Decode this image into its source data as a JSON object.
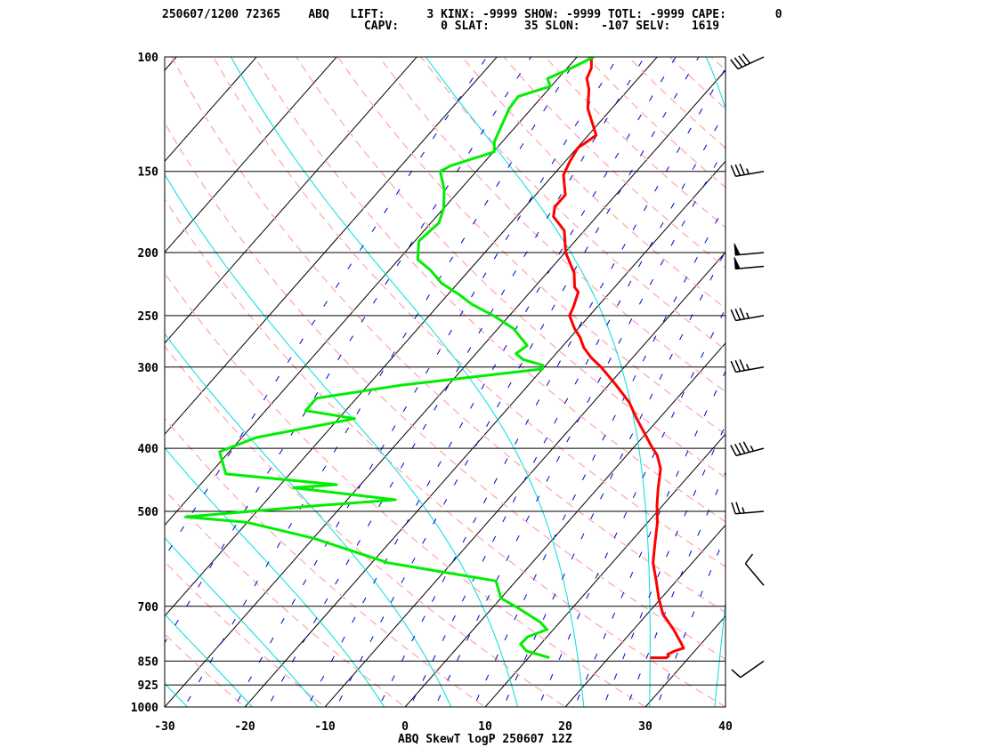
{
  "header": {
    "line1": "250607/1200 72365    ABQ   LIFT:      3 KINX: -9999 SHOW: -9999 TOTL: -9999 CAPE:       0",
    "line2": "                             CAPV:      0 SLAT:     35 SLON:   -107 SELV:   1619"
  },
  "colors": {
    "temperature": "#ff0000",
    "dewpoint": "#00ee00",
    "isotherm": "#000000",
    "dry_adiabat": "#ffaab4",
    "moist_adiabat": "#00dede",
    "mixing_ratio": "#0000cc"
  },
  "chart_data": {
    "type": "line",
    "title": "ABQ SkewT logP 250607 12Z",
    "xlabel": "",
    "ylabel": "",
    "x_axis": {
      "range": [
        -30,
        40
      ],
      "ticks": [
        -30,
        -20,
        -10,
        0,
        10,
        20,
        30,
        40
      ],
      "unit": "deg C (skewed)"
    },
    "y_axis": {
      "range": [
        1000,
        100
      ],
      "scale": "log",
      "ticks": [
        100,
        150,
        200,
        250,
        300,
        400,
        500,
        700,
        850,
        925,
        1000
      ],
      "unit": "hPa"
    },
    "grid": true,
    "series": [
      {
        "name": "",
        "kind": "temperature",
        "points": [
          [
            840,
            25.2
          ],
          [
            840,
            27.2
          ],
          [
            835,
            27.3
          ],
          [
            830,
            27.0
          ],
          [
            820,
            27.5
          ],
          [
            812,
            28.3
          ],
          [
            800,
            27.6
          ],
          [
            760,
            25.0
          ],
          [
            720,
            22.0
          ],
          [
            680,
            19.7
          ],
          [
            640,
            17.5
          ],
          [
            600,
            15.1
          ],
          [
            560,
            13.2
          ],
          [
            520,
            11.2
          ],
          [
            490,
            9.3
          ],
          [
            460,
            7.5
          ],
          [
            430,
            5.7
          ],
          [
            410,
            3.8
          ],
          [
            398,
            2.2
          ],
          [
            380,
            -0.1
          ],
          [
            360,
            -2.8
          ],
          [
            340,
            -5.5
          ],
          [
            320,
            -9.0
          ],
          [
            300,
            -12.9
          ],
          [
            290,
            -15.2
          ],
          [
            280,
            -17.2
          ],
          [
            270,
            -18.8
          ],
          [
            262,
            -20.4
          ],
          [
            250,
            -22.5
          ],
          [
            242,
            -23.0
          ],
          [
            230,
            -24.0
          ],
          [
            226,
            -25.0
          ],
          [
            215,
            -26.6
          ],
          [
            200,
            -29.9
          ],
          [
            185,
            -32.5
          ],
          [
            176,
            -35.4
          ],
          [
            170,
            -36.3
          ],
          [
            163,
            -36.3
          ],
          [
            152,
            -38.7
          ],
          [
            145,
            -39.4
          ],
          [
            138,
            -39.9
          ],
          [
            132,
            -39.0
          ],
          [
            120,
            -43.0
          ],
          [
            112,
            -45.0
          ],
          [
            108,
            -46.4
          ],
          [
            104,
            -47.0
          ],
          [
            101,
            -47.9
          ],
          [
            100,
            -48.4
          ]
        ]
      },
      {
        "name": "",
        "kind": "dewpoint",
        "points": [
          [
            840,
            12.6
          ],
          [
            820,
            9.0
          ],
          [
            800,
            7.5
          ],
          [
            780,
            7.6
          ],
          [
            760,
            9.2
          ],
          [
            740,
            7.5
          ],
          [
            705,
            3.3
          ],
          [
            680,
            0.0
          ],
          [
            640,
            -2.5
          ],
          [
            600,
            -18.0
          ],
          [
            550,
            -30.0
          ],
          [
            520,
            -40.0
          ],
          [
            510,
            -48.3
          ],
          [
            490,
            -33.0
          ],
          [
            480,
            -24.0
          ],
          [
            460,
            -38.0
          ],
          [
            455,
            -33.0
          ],
          [
            438,
            -48.0
          ],
          [
            405,
            -51.2
          ],
          [
            385,
            -48.2
          ],
          [
            360,
            -38.0
          ],
          [
            350,
            -45.0
          ],
          [
            335,
            -45.0
          ],
          [
            320,
            -36.0
          ],
          [
            302,
            -20.0
          ],
          [
            298,
            -20.4
          ],
          [
            292,
            -23.5
          ],
          [
            286,
            -25.0
          ],
          [
            278,
            -24.5
          ],
          [
            262,
            -28.0
          ],
          [
            250,
            -32.0
          ],
          [
            240,
            -36.0
          ],
          [
            232,
            -38.6
          ],
          [
            223,
            -42.0
          ],
          [
            213,
            -44.8
          ],
          [
            205,
            -47.6
          ],
          [
            192,
            -49.5
          ],
          [
            180,
            -49.0
          ],
          [
            171,
            -50.0
          ],
          [
            160,
            -52.0
          ],
          [
            150,
            -54.5
          ],
          [
            147,
            -53.8
          ],
          [
            140,
            -49.9
          ],
          [
            135,
            -51.0
          ],
          [
            120,
            -52.8
          ],
          [
            115,
            -53.0
          ],
          [
            111,
            -50.1
          ],
          [
            108,
            -51.3
          ],
          [
            104,
            -49.5
          ],
          [
            100,
            -47.9
          ]
        ]
      }
    ],
    "wind_barbs": [
      {
        "pressure": 850,
        "speed_kt": 10,
        "dir_deg": 235
      },
      {
        "pressure": 650,
        "speed_kt": 10,
        "dir_deg": 320
      },
      {
        "pressure": 500,
        "speed_kt": 25,
        "dir_deg": 265
      },
      {
        "pressure": 400,
        "speed_kt": 45,
        "dir_deg": 255
      },
      {
        "pressure": 300,
        "speed_kt": 35,
        "dir_deg": 260
      },
      {
        "pressure": 250,
        "speed_kt": 35,
        "dir_deg": 260
      },
      {
        "pressure": 210,
        "speed_kt": 50,
        "dir_deg": 265
      },
      {
        "pressure": 200,
        "speed_kt": 50,
        "dir_deg": 265
      },
      {
        "pressure": 150,
        "speed_kt": 35,
        "dir_deg": 260
      },
      {
        "pressure": 100,
        "speed_kt": 40,
        "dir_deg": 245
      }
    ]
  }
}
